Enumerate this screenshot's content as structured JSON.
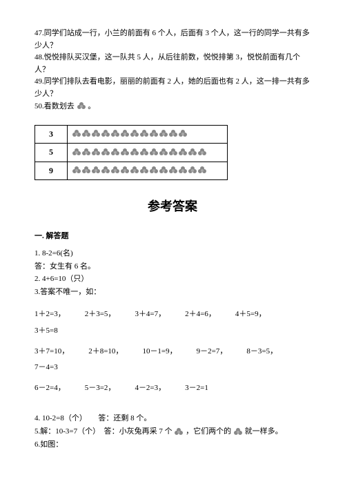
{
  "questions": {
    "q47": "47.同学们站成一行，小兰的前面有 6 个人，后面有 3 个人，这一行的同学一共有多少人？",
    "q48": "48.悦悦排队买汉堡，这一队共 5 人，从后往前数，悦悦排第 3，悦悦前面有几个人？",
    "q49": "49.同学们排队去看电影，丽丽的前面有 2 人，她的后面也有 2 人，这一排一共有多少人？",
    "q50_a": "50.看数划去",
    "q50_b": "。"
  },
  "table": {
    "rows": [
      {
        "num": "3",
        "flower_count": 12
      },
      {
        "num": "5",
        "flower_count": 14
      },
      {
        "num": "9",
        "flower_count": 14
      }
    ]
  },
  "answers": {
    "title": "参考答案",
    "section": "一. 解答题",
    "a1_line1": "1. 8-2=6(名)",
    "a1_line2": "答：女生有 6 名。",
    "a2": "2. 4+6=10（只）",
    "a3": "3.答案不唯一，如：",
    "eq_rows": [
      [
        "1＋2=3，",
        "2＋3=5，",
        "3＋4=7，",
        "2＋4=6，",
        "4＋5=9，",
        "3＋5=8"
      ],
      [
        "3＋7=10，",
        "2＋8=10，",
        "10－1=9，",
        "9－2=7，",
        "8－3=5，",
        "7－4=3"
      ],
      [
        "6－2=4，",
        "5－3=2，",
        "4－2=3，",
        "3－2=1",
        ""
      ]
    ],
    "a4": "4. 10-2=8（个）　　答：还剩 8 个。",
    "a5_a": "5.解：10-3=7（个）　答：小灰兔再采 7 个",
    "a5_b": "，它们两个的",
    "a5_c": "就一样多。",
    "a6": "6.如图："
  }
}
